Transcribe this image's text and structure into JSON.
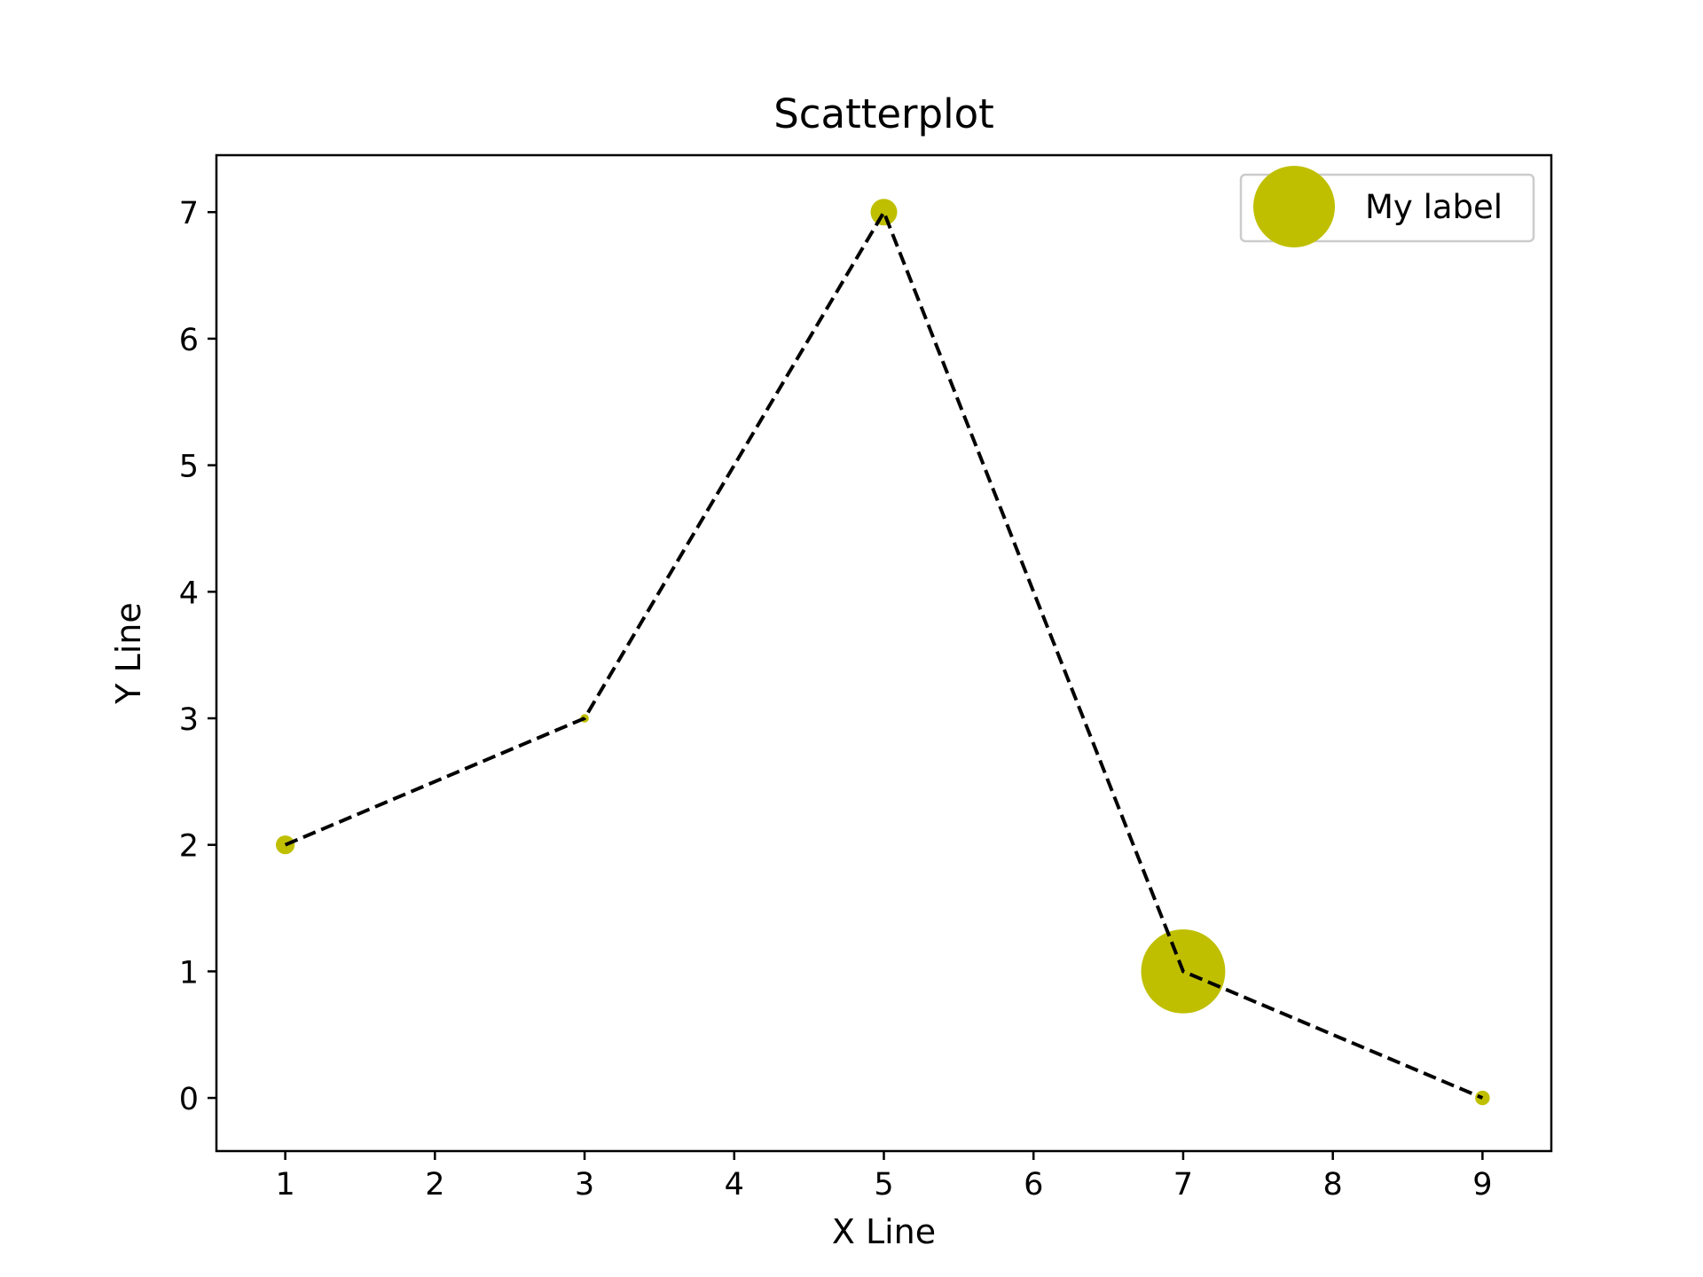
{
  "chart_data": {
    "type": "scatter",
    "title": "Scatterplot",
    "xlabel": "X Line",
    "ylabel": "Y Line",
    "xlim": [
      0.54,
      9.46
    ],
    "ylim": [
      -0.42,
      7.45
    ],
    "xticks": [
      1,
      2,
      3,
      4,
      5,
      6,
      7,
      8,
      9
    ],
    "yticks": [
      0,
      1,
      2,
      3,
      4,
      5,
      6,
      7
    ],
    "grid": false,
    "legend_position": "top-right",
    "series": [
      {
        "name": "My label",
        "kind": "scatter",
        "color": "#bfbf00",
        "x": [
          1,
          3,
          5,
          7,
          9
        ],
        "y": [
          2,
          3,
          7,
          1,
          0
        ],
        "sizes": [
          50,
          10,
          100,
          1000,
          30
        ]
      },
      {
        "kind": "line",
        "color": "#000000",
        "linestyle": "dashed",
        "x": [
          1,
          3,
          5,
          7,
          9
        ],
        "y": [
          2,
          3,
          7,
          1,
          0
        ]
      }
    ]
  }
}
